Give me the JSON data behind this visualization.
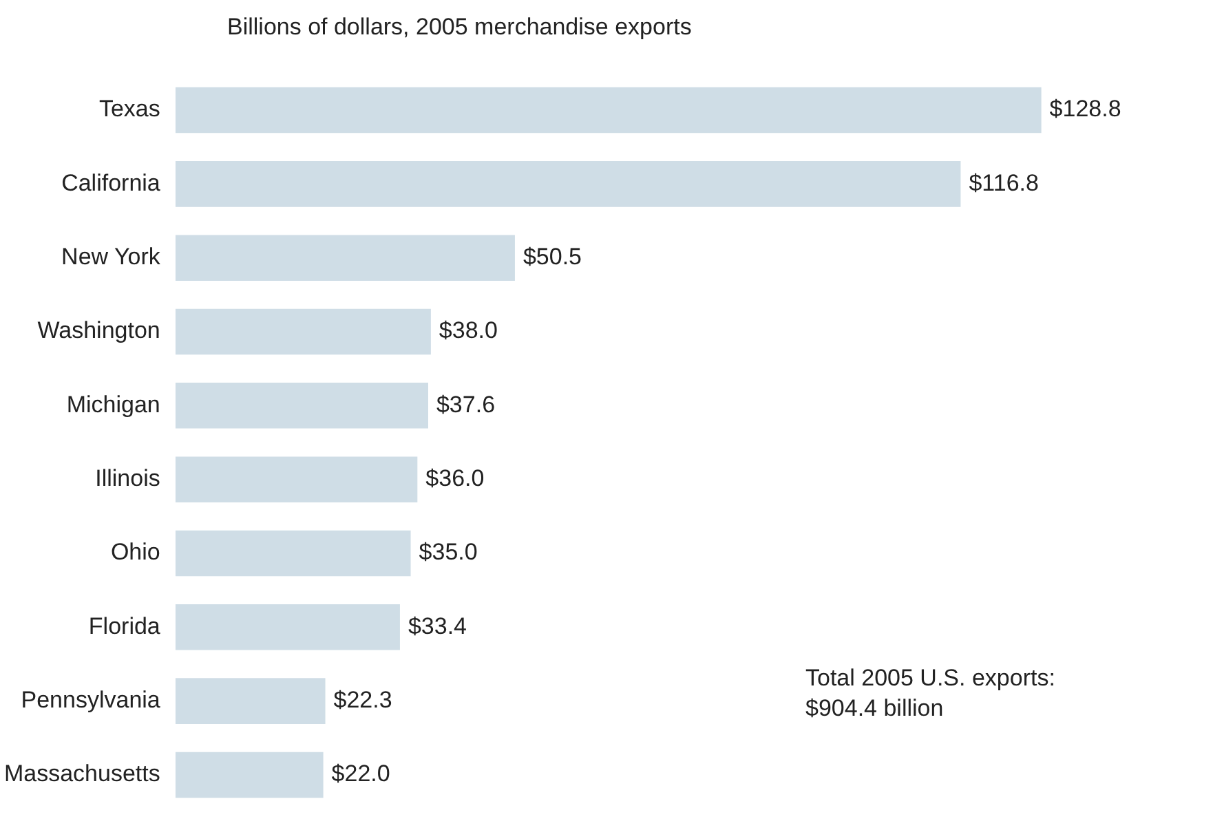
{
  "chart_data": {
    "type": "bar",
    "orientation": "horizontal",
    "title": "Billions of dollars, 2005 merchandise exports",
    "categories": [
      "Texas",
      "California",
      "New York",
      "Washington",
      "Michigan",
      "Illinois",
      "Ohio",
      "Florida",
      "Pennsylvania",
      "Massachusetts"
    ],
    "values": [
      128.8,
      116.8,
      50.5,
      38.0,
      37.6,
      36.0,
      35.0,
      33.4,
      22.3,
      22.0
    ],
    "value_labels": [
      "$128.8",
      "$116.8",
      "$50.5",
      "$38.0",
      "$37.6",
      "$36.0",
      "$35.0",
      "$33.4",
      "$22.3",
      "$22.0"
    ],
    "color": "#cfdde6",
    "legend": false,
    "annotations": [
      "Total 2005 U.S. exports: $904.4 billion"
    ]
  }
}
